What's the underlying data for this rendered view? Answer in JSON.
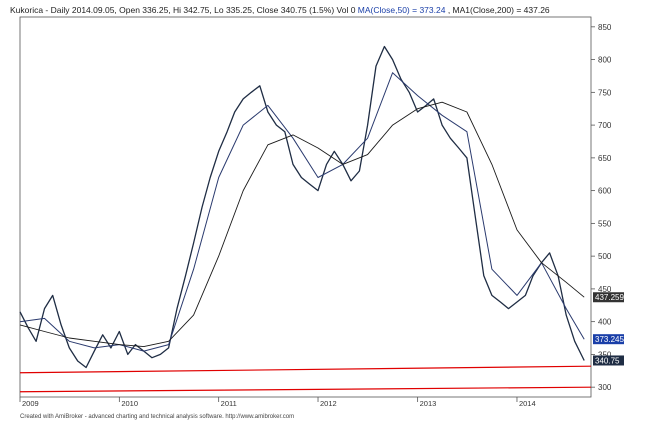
{
  "header": {
    "title": "Kukorica - Daily 2014.09.05, Open 336.25, Hi 342.75, Lo 335.25, Close 340.75 (1.5%) Vol 0 ",
    "ma50_text": "MA(Close,50) = 373.24",
    "ma200_text": ", MA1(Close,200) = 437.26"
  },
  "footer": "Created with AmiBroker - advanced charting and technical analysis software. http://www.amibroker.com",
  "colors": {
    "price": "#1f2d44",
    "ma50": "#2a3a6e",
    "ma200": "#1a1a1a",
    "support_lines": "#e00000",
    "badge_price": "#1f2d44",
    "badge_ma50": "#1a3fa8",
    "badge_ma200": "#333333"
  },
  "chart_data": {
    "type": "line",
    "title": "Kukorica - Daily",
    "y_axis_position": "right",
    "ylim": [
      285,
      865
    ],
    "yticks": [
      300,
      350,
      400,
      450,
      500,
      550,
      600,
      650,
      700,
      750,
      800,
      850
    ],
    "xlim": [
      "2009-01-01",
      "2014-09-30"
    ],
    "xticks": [
      {
        "date": "2009-01-01",
        "label": "2009"
      },
      {
        "date": "2010-01-01",
        "label": "2010"
      },
      {
        "date": "2011-01-01",
        "label": "2011"
      },
      {
        "date": "2012-01-01",
        "label": "2012"
      },
      {
        "date": "2013-01-01",
        "label": "2013"
      },
      {
        "date": "2014-01-01",
        "label": "2014"
      }
    ],
    "last_values": [
      {
        "label": "437.259",
        "value": 437.26,
        "style": "badge_ma200"
      },
      {
        "label": "373.245",
        "value": 373.24,
        "style": "badge_ma50"
      },
      {
        "label": "340.75",
        "value": 340.75,
        "style": "badge_price"
      }
    ],
    "series": [
      {
        "kind": "price",
        "x": [
          "2009-01-01",
          "2009-02-01",
          "2009-03-01",
          "2009-04-01",
          "2009-05-01",
          "2009-06-01",
          "2009-07-01",
          "2009-08-01",
          "2009-09-01",
          "2009-10-01",
          "2009-11-01",
          "2009-12-01",
          "2010-01-01",
          "2010-02-01",
          "2010-03-01",
          "2010-04-01",
          "2010-05-01",
          "2010-06-01",
          "2010-07-01",
          "2010-08-01",
          "2010-09-01",
          "2010-10-01",
          "2010-11-01",
          "2010-12-01",
          "2011-01-01",
          "2011-02-01",
          "2011-03-01",
          "2011-04-01",
          "2011-05-01",
          "2011-06-01",
          "2011-07-01",
          "2011-08-01",
          "2011-09-01",
          "2011-10-01",
          "2011-11-01",
          "2011-12-01",
          "2012-01-01",
          "2012-02-01",
          "2012-03-01",
          "2012-04-01",
          "2012-05-01",
          "2012-06-01",
          "2012-07-01",
          "2012-08-01",
          "2012-09-01",
          "2012-10-01",
          "2012-11-01",
          "2012-12-01",
          "2013-01-01",
          "2013-02-01",
          "2013-03-01",
          "2013-04-01",
          "2013-05-01",
          "2013-06-01",
          "2013-07-01",
          "2013-08-01",
          "2013-09-01",
          "2013-10-01",
          "2013-11-01",
          "2013-12-01",
          "2014-01-01",
          "2014-02-01",
          "2014-03-01",
          "2014-04-01",
          "2014-05-01",
          "2014-06-01",
          "2014-07-01",
          "2014-08-01",
          "2014-09-05"
        ],
        "y": [
          415,
          390,
          370,
          420,
          440,
          395,
          360,
          340,
          330,
          355,
          380,
          360,
          385,
          350,
          365,
          355,
          345,
          350,
          360,
          420,
          470,
          520,
          575,
          620,
          660,
          690,
          720,
          740,
          750,
          760,
          720,
          700,
          690,
          640,
          620,
          610,
          600,
          640,
          660,
          640,
          615,
          630,
          700,
          790,
          820,
          800,
          770,
          750,
          720,
          730,
          740,
          700,
          680,
          665,
          650,
          560,
          470,
          440,
          430,
          420,
          430,
          440,
          470,
          490,
          505,
          470,
          410,
          370,
          340.75
        ]
      },
      {
        "kind": "ma50",
        "x": [
          "2009-01-01",
          "2009-04-01",
          "2009-07-01",
          "2009-10-01",
          "2010-01-01",
          "2010-04-01",
          "2010-07-01",
          "2010-10-01",
          "2011-01-01",
          "2011-04-01",
          "2011-07-01",
          "2011-10-01",
          "2012-01-01",
          "2012-04-01",
          "2012-07-01",
          "2012-10-01",
          "2013-01-01",
          "2013-04-01",
          "2013-07-01",
          "2013-10-01",
          "2014-01-01",
          "2014-04-01",
          "2014-07-01",
          "2014-09-05"
        ],
        "y": [
          400,
          405,
          370,
          360,
          365,
          355,
          365,
          480,
          620,
          700,
          730,
          680,
          620,
          640,
          680,
          780,
          745,
          715,
          690,
          480,
          440,
          490,
          420,
          373.24
        ]
      },
      {
        "kind": "ma200",
        "x": [
          "2009-01-01",
          "2009-04-01",
          "2009-07-01",
          "2009-10-01",
          "2010-01-01",
          "2010-04-01",
          "2010-07-01",
          "2010-10-01",
          "2011-01-01",
          "2011-04-01",
          "2011-07-01",
          "2011-10-01",
          "2012-01-01",
          "2012-04-01",
          "2012-07-01",
          "2012-10-01",
          "2013-01-01",
          "2013-04-01",
          "2013-07-01",
          "2013-10-01",
          "2014-01-01",
          "2014-04-01",
          "2014-07-01",
          "2014-09-05"
        ],
        "y": [
          395,
          385,
          375,
          370,
          365,
          362,
          370,
          410,
          500,
          600,
          670,
          685,
          665,
          640,
          655,
          700,
          725,
          735,
          720,
          640,
          540,
          490,
          460,
          437.26
        ]
      }
    ],
    "support_lines": [
      {
        "x1": "2009-01-01",
        "y1": 322,
        "x2": "2014-09-30",
        "y2": 332
      },
      {
        "x1": "2009-01-01",
        "y1": 293,
        "x2": "2014-09-30",
        "y2": 300
      }
    ],
    "grid": false,
    "legend": "none"
  }
}
